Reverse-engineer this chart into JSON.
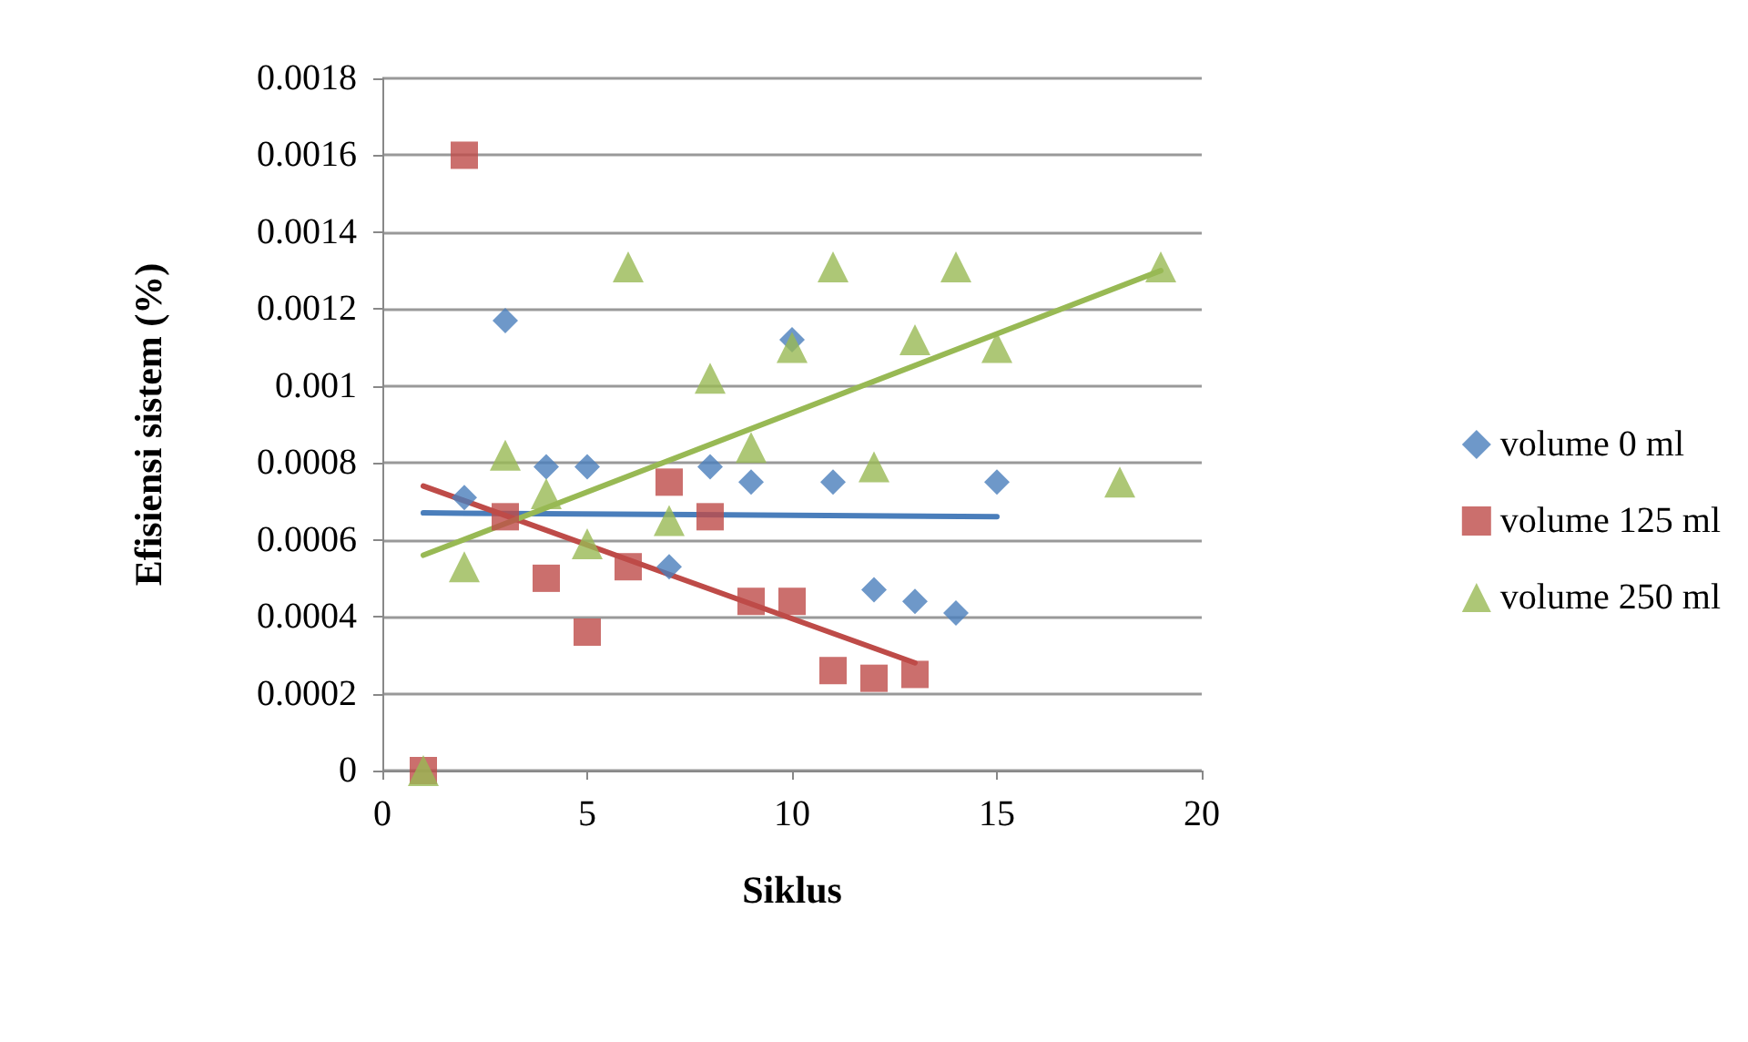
{
  "chart_data": {
    "type": "scatter",
    "xlabel": "Siklus",
    "ylabel": "Efisiensi sistem (%)",
    "xlim": [
      0,
      20
    ],
    "xticks": [
      0,
      5,
      10,
      15,
      20
    ],
    "ylim": [
      0,
      0.0018
    ],
    "yticks": [
      0,
      0.0002,
      0.0004,
      0.0006,
      0.0008,
      0.001,
      0.0012,
      0.0014,
      0.0016,
      0.0018
    ],
    "grid": "y",
    "legend": "right",
    "series": [
      {
        "name": "volume 0 ml",
        "color": "#4a7ebb",
        "marker": "diamond",
        "x": [
          2,
          3,
          4,
          5,
          7,
          8,
          9,
          10,
          11,
          12,
          13,
          14,
          15
        ],
        "values": [
          0.00071,
          0.00117,
          0.00079,
          0.00079,
          0.00053,
          0.00079,
          0.00075,
          0.00112,
          0.00075,
          0.00047,
          0.00044,
          0.00041,
          0.00075
        ]
      },
      {
        "name": "volume 125 ml",
        "color": "#be4b48",
        "marker": "square",
        "x": [
          1,
          2,
          3,
          4,
          5,
          6,
          7,
          8,
          9,
          10,
          11,
          12,
          13
        ],
        "values": [
          0,
          0.0016,
          0.00066,
          0.0005,
          0.00036,
          0.00053,
          0.00075,
          0.00066,
          0.00044,
          0.00044,
          0.00026,
          0.00024,
          0.00025
        ]
      },
      {
        "name": "volume 250 ml",
        "color": "#98b954",
        "marker": "triangle",
        "x": [
          1,
          2,
          3,
          4,
          5,
          6,
          7,
          8,
          9,
          10,
          11,
          12,
          13,
          14,
          15,
          18,
          19
        ],
        "values": [
          0,
          0.00053,
          0.00082,
          0.00072,
          0.00059,
          0.00131,
          0.00065,
          0.00102,
          0.00084,
          0.0011,
          0.00131,
          0.00079,
          0.00112,
          0.00131,
          0.0011,
          0.00075,
          0.00131
        ]
      },
      {
        "type": "line",
        "color": "#4a7ebb",
        "marker": "none",
        "x": [
          1,
          15
        ],
        "values": [
          0.00067,
          0.00066
        ]
      },
      {
        "type": "line",
        "color": "#be4b48",
        "marker": "none",
        "x": [
          1,
          13
        ],
        "values": [
          0.00074,
          0.00028
        ]
      },
      {
        "type": "line",
        "color": "#98b954",
        "marker": "none",
        "x": [
          1,
          19
        ],
        "values": [
          0.00056,
          0.0013
        ]
      }
    ]
  }
}
